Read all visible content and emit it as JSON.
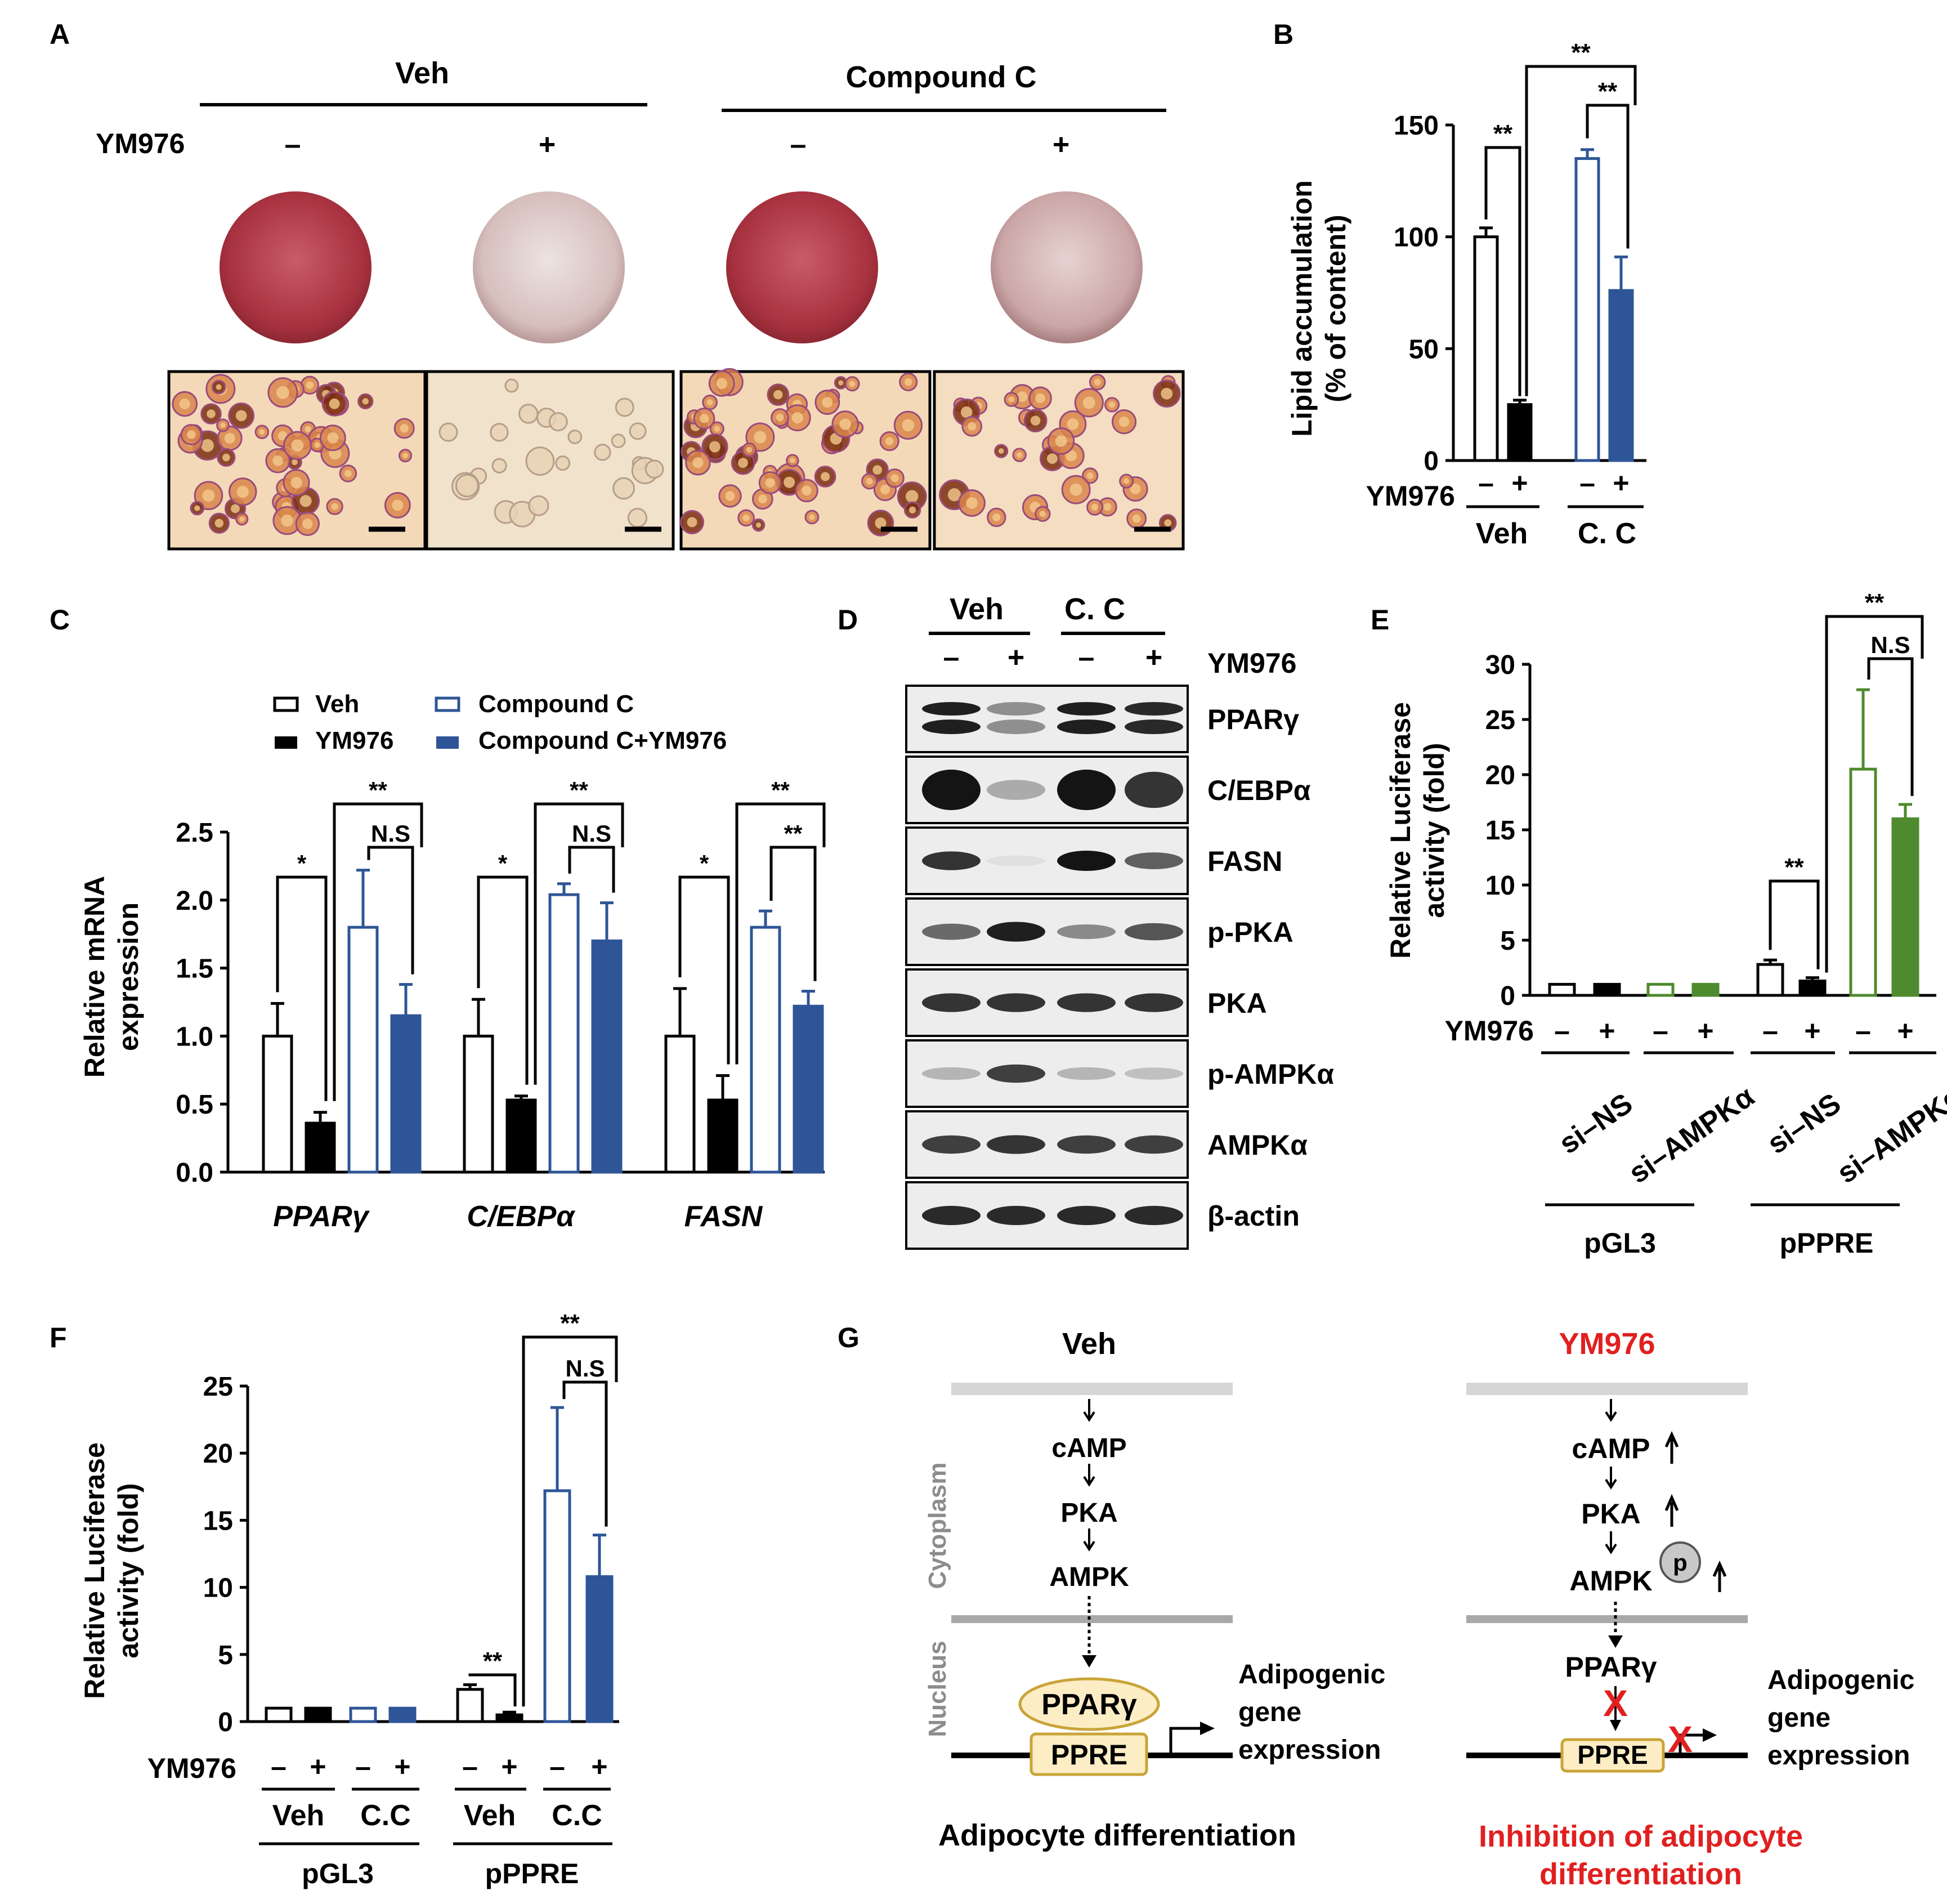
{
  "panel_letters": {
    "a": "A",
    "b": "B",
    "c": "C",
    "d": "D",
    "e": "E",
    "f": "F",
    "g": "G"
  },
  "colors": {
    "black": "#000000",
    "blue": "#2E5597",
    "green": "#4E8A2E",
    "red": "#E02020",
    "gray": "#808080",
    "plate_red": "#B03A48",
    "cell_bg": "#F3D9B8"
  },
  "panel_a": {
    "groups": [
      "Veh",
      "Compound C"
    ],
    "row_label": "YM976",
    "signs": [
      "–",
      "+",
      "–",
      "+"
    ],
    "images": [
      {
        "plate": "red stained culture plate",
        "micro": "dense lipid-laden cells",
        "intensity": 1.0
      },
      {
        "plate": "pale culture plate",
        "micro": "sparse cells",
        "intensity": 0.3
      },
      {
        "plate": "red stained culture plate",
        "micro": "dense lipid-laden cells",
        "intensity": 1.0
      },
      {
        "plate": "faint culture plate",
        "micro": "moderate lipid-laden cells",
        "intensity": 0.55
      }
    ]
  },
  "chart_data": [
    {
      "id": "B",
      "type": "bar",
      "ylabel": "Lipid accumulation (% of content)",
      "ylabel_lines": [
        "Lipid accumulation",
        "(% of content)"
      ],
      "ylim": [
        0,
        150
      ],
      "yticks": [
        "0",
        "50",
        "100",
        "150"
      ],
      "treatment_label": "YM976",
      "signs": [
        "–",
        "+",
        "–",
        "+"
      ],
      "groups": [
        "Veh",
        "C. C"
      ],
      "values": [
        100,
        25,
        135,
        76
      ],
      "errors": [
        4,
        2,
        4,
        15
      ],
      "styles": [
        "open-black",
        "filled-black",
        "open-blue",
        "filled-blue"
      ],
      "significance": [
        {
          "from": 0,
          "to": 1,
          "label": "**"
        },
        {
          "from": 2,
          "to": 3,
          "label": "**"
        },
        {
          "from": 1,
          "to": 3,
          "label": "**"
        }
      ]
    },
    {
      "id": "C",
      "type": "bar",
      "ylabel": "Relative mRNA expression",
      "ylabel_lines": [
        "Relative mRNA",
        "expression"
      ],
      "ylim": [
        0,
        2.5
      ],
      "yticks": [
        "0.0",
        "0.5",
        "1.0",
        "1.5",
        "2.0",
        "2.5"
      ],
      "legend": [
        "Veh",
        "YM976",
        "Compound C",
        "Compound C+YM976"
      ],
      "genes": [
        "PPARγ",
        "C/EBPα",
        "FASN"
      ],
      "series": [
        {
          "name": "Veh",
          "values": [
            1.0,
            1.0,
            1.0
          ],
          "errors": [
            0.24,
            0.27,
            0.35
          ]
        },
        {
          "name": "YM976",
          "values": [
            0.36,
            0.53,
            0.53
          ],
          "errors": [
            0.08,
            0.03,
            0.18
          ]
        },
        {
          "name": "Compound C",
          "values": [
            1.8,
            2.04,
            1.8
          ],
          "errors": [
            0.42,
            0.08,
            0.12
          ]
        },
        {
          "name": "Compound C+YM976",
          "values": [
            1.15,
            1.7,
            1.22
          ],
          "errors": [
            0.23,
            0.28,
            0.11
          ]
        }
      ],
      "significance_by_gene": [
        [
          {
            "from": 0,
            "to": 1,
            "label": "*"
          },
          {
            "from": 2,
            "to": 3,
            "label": "N.S"
          },
          {
            "from": 1,
            "to": 3,
            "label": "**"
          }
        ],
        [
          {
            "from": 0,
            "to": 1,
            "label": "*"
          },
          {
            "from": 2,
            "to": 3,
            "label": "N.S"
          },
          {
            "from": 1,
            "to": 3,
            "label": "**"
          }
        ],
        [
          {
            "from": 0,
            "to": 1,
            "label": "*"
          },
          {
            "from": 2,
            "to": 3,
            "label": "**"
          },
          {
            "from": 1,
            "to": 3,
            "label": "**"
          }
        ]
      ]
    },
    {
      "id": "E",
      "type": "bar",
      "ylabel": "Relative Luciferase activity (fold)",
      "ylabel_lines": [
        "Relative Luciferase",
        "activity (fold)"
      ],
      "ylim": [
        0,
        30
      ],
      "yticks": [
        "0",
        "5",
        "10",
        "15",
        "20",
        "25",
        "30"
      ],
      "treatment_label": "YM976",
      "signs": [
        "–",
        "+",
        "–",
        "+",
        "–",
        "+",
        "–",
        "+"
      ],
      "groups": [
        "si–NS",
        "si–AMPKα",
        "si–NS",
        "si–AMPKα"
      ],
      "reporters": [
        "pGL3",
        "pPPRE"
      ],
      "values": [
        1,
        1,
        1,
        1,
        2.8,
        1.3,
        20.5,
        16
      ],
      "errors": [
        0,
        0,
        0,
        0,
        0.4,
        0.3,
        7.2,
        1.3
      ],
      "styles": [
        "open-black",
        "filled-black",
        "open-green",
        "filled-green",
        "open-black",
        "filled-black",
        "open-green",
        "filled-green"
      ],
      "significance": [
        {
          "from": 4,
          "to": 5,
          "label": "**"
        },
        {
          "from": 6,
          "to": 7,
          "label": "N.S"
        },
        {
          "from": 5,
          "to": 7,
          "label": "**"
        }
      ]
    },
    {
      "id": "F",
      "type": "bar",
      "ylabel": "Relative Luciferase activity (fold)",
      "ylabel_lines": [
        "Relative Luciferase",
        "activity (fold)"
      ],
      "ylim": [
        0,
        25
      ],
      "yticks": [
        "0",
        "5",
        "10",
        "15",
        "20",
        "25"
      ],
      "treatment_label": "YM976",
      "signs": [
        "–",
        "+",
        "–",
        "+",
        "–",
        "+",
        "–",
        "+"
      ],
      "groups": [
        "Veh",
        "C.C",
        "Veh",
        "C.C"
      ],
      "reporters": [
        "pGL3",
        "pPPRE"
      ],
      "values": [
        1,
        1,
        1,
        1,
        2.4,
        0.5,
        17.2,
        10.8
      ],
      "errors": [
        0,
        0,
        0,
        0,
        0.35,
        0.2,
        6.2,
        3.1
      ],
      "styles": [
        "open-black",
        "filled-black",
        "open-blue",
        "filled-blue",
        "open-black",
        "filled-black",
        "open-blue",
        "filled-blue"
      ],
      "significance": [
        {
          "from": 4,
          "to": 5,
          "label": "**"
        },
        {
          "from": 6,
          "to": 7,
          "label": "N.S"
        },
        {
          "from": 5,
          "to": 7,
          "label": "**"
        }
      ]
    }
  ],
  "panel_d": {
    "groups": [
      "Veh",
      "C. C"
    ],
    "treatment_label": "YM976",
    "signs": [
      "–",
      "+",
      "–",
      "+"
    ],
    "blots": [
      {
        "label": "PPARγ",
        "intensities": [
          1.0,
          0.45,
          1.0,
          0.95
        ],
        "double": true
      },
      {
        "label": "C/EBPα",
        "intensities": [
          1.0,
          0.3,
          1.0,
          0.85
        ],
        "double": false
      },
      {
        "label": "FASN",
        "intensities": [
          0.85,
          0.05,
          1.0,
          0.65
        ],
        "double": false
      },
      {
        "label": "p-PKA",
        "intensities": [
          0.6,
          0.95,
          0.45,
          0.7
        ],
        "double": false
      },
      {
        "label": "PKA",
        "intensities": [
          0.85,
          0.85,
          0.85,
          0.85
        ],
        "double": false
      },
      {
        "label": "p-AMPKα",
        "intensities": [
          0.25,
          0.8,
          0.25,
          0.2
        ],
        "double": false
      },
      {
        "label": "AMPKα",
        "intensities": [
          0.8,
          0.85,
          0.8,
          0.8
        ],
        "double": false
      },
      {
        "label": "β-actin",
        "intensities": [
          0.9,
          0.9,
          0.9,
          0.9
        ],
        "double": false
      }
    ]
  },
  "panel_g": {
    "veh": {
      "title": "Veh",
      "cytoplasm": "Cytoplasm",
      "nucleus": "Nucleus",
      "chain": [
        "cAMP",
        "PKA",
        "AMPK"
      ],
      "pparg": "PPARγ",
      "ppre": "PPRE",
      "gene_lines": [
        "Adipogenic",
        "gene",
        "expression"
      ],
      "caption": "Adipocyte differentiation"
    },
    "ym": {
      "title": "YM976",
      "chain": [
        "cAMP",
        "PKA",
        "AMPK"
      ],
      "phospho": "p",
      "pparg": "PPARγ",
      "ppre": "PPRE",
      "block": "X",
      "gene_lines": [
        "Adipogenic",
        "gene",
        "expression"
      ],
      "caption_lines": [
        "Inhibition of adipocyte",
        "differentiation"
      ]
    }
  }
}
